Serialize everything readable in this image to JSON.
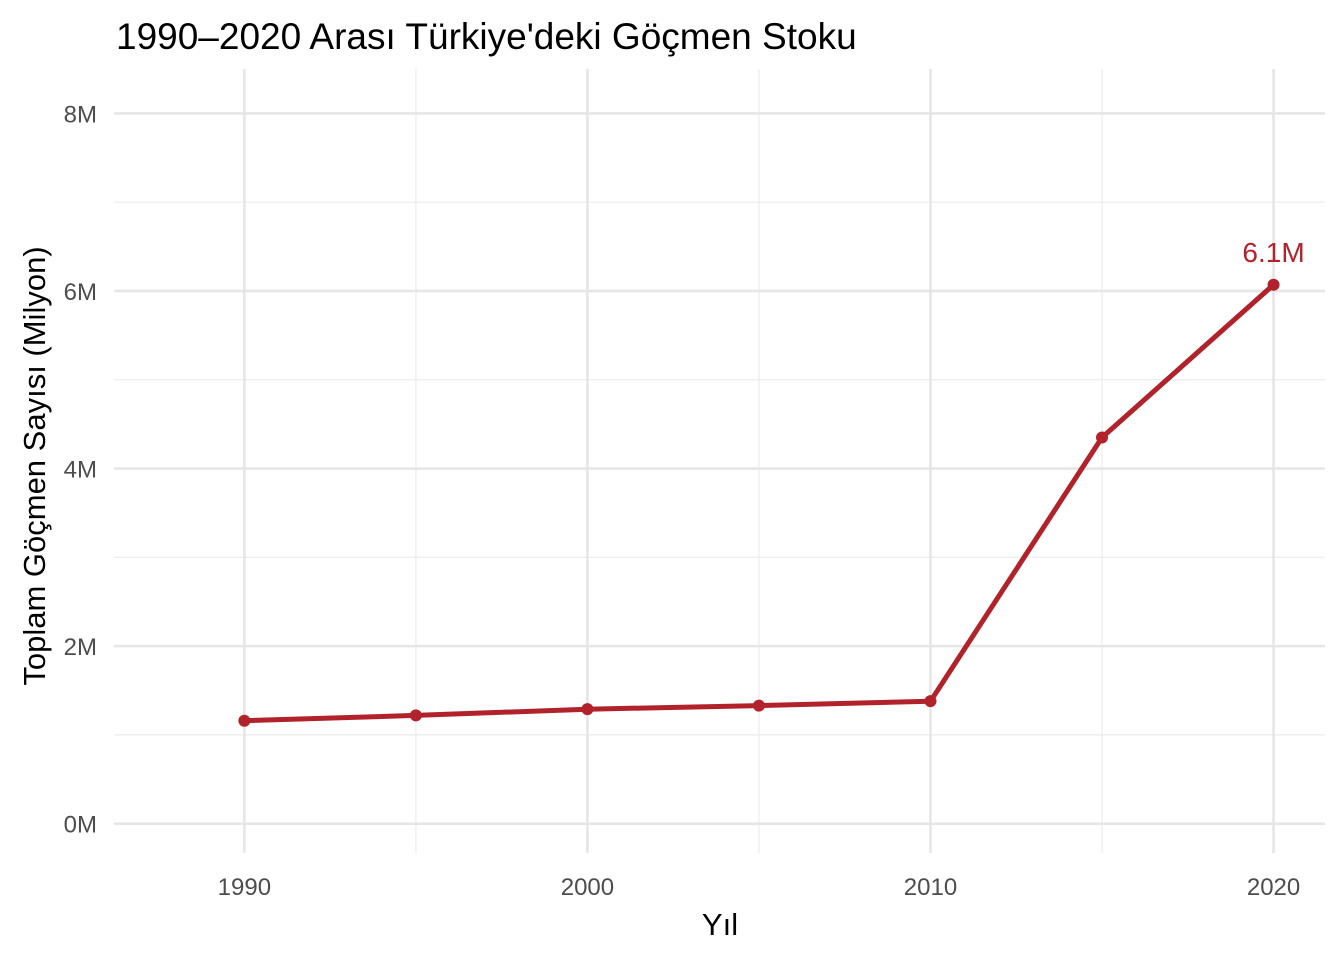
{
  "chart_data": {
    "type": "line",
    "title": "1990–2020 Arası Türkiye'deki Göçmen Stoku",
    "xlabel": "Yıl",
    "ylabel": "Toplam Göçmen Sayısı (Milyon)",
    "x": [
      1990,
      1995,
      2000,
      2005,
      2010,
      2015,
      2020
    ],
    "series": [
      {
        "values": [
          1.16,
          1.22,
          1.29,
          1.33,
          1.38,
          4.35,
          6.07
        ]
      }
    ],
    "xlim": [
      1986.2,
      2021.5
    ],
    "ylim": [
      -0.33,
      8.5
    ],
    "x_ticks": [
      1990,
      2000,
      2010,
      2020
    ],
    "x_tick_labels": [
      "1990",
      "2000",
      "2010",
      "2020"
    ],
    "y_ticks": [
      0,
      2,
      4,
      6,
      8
    ],
    "y_tick_labels": [
      "0M",
      "2M",
      "4M",
      "6M",
      "8M"
    ],
    "annotation": {
      "x": 2020,
      "y": 6.07,
      "text": "6.1M"
    },
    "grid": true,
    "line_color": "#b2222a"
  }
}
